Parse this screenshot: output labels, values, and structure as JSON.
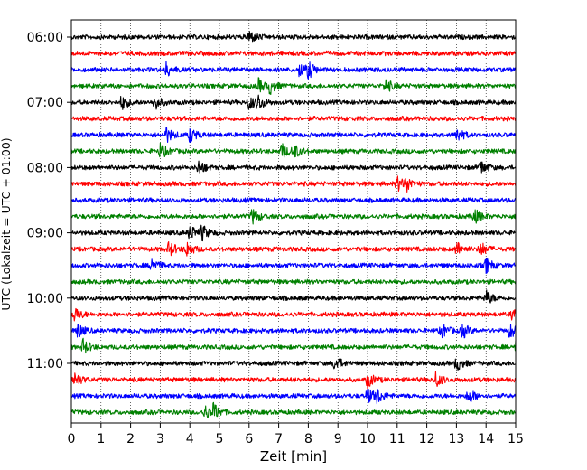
{
  "chart_data": {
    "type": "line",
    "title": "",
    "xlabel": "Zeit  [min]",
    "ylabel": "UTC (Lokalzeit = UTC + 01:00)",
    "xlim": [
      0,
      15
    ],
    "x_ticks": [
      "0",
      "1",
      "2",
      "3",
      "4",
      "5",
      "6",
      "7",
      "8",
      "9",
      "10",
      "11",
      "12",
      "13",
      "14",
      "15"
    ],
    "y_ticks": [
      "06:00",
      "07:00",
      "08:00",
      "09:00",
      "10:00",
      "11:00"
    ],
    "grid": true,
    "legend": "none",
    "trace_interval_min": 15,
    "trace_colors": [
      "#000000",
      "#ff0000",
      "#0000ff",
      "#008000"
    ],
    "series": [
      {
        "start": "06:00",
        "events": [
          6.0
        ]
      },
      {
        "start": "06:15",
        "events": []
      },
      {
        "start": "06:30",
        "events": [
          7.7,
          8.0,
          3.2
        ]
      },
      {
        "start": "06:45",
        "events": [
          6.7,
          10.6,
          6.3
        ]
      },
      {
        "start": "07:00",
        "events": [
          6.0,
          6.3,
          1.7,
          2.8
        ]
      },
      {
        "start": "07:15",
        "events": []
      },
      {
        "start": "07:30",
        "events": [
          3.2,
          13.0,
          4.0
        ]
      },
      {
        "start": "07:45",
        "events": [
          7.1,
          7.5,
          3.0
        ]
      },
      {
        "start": "08:00",
        "events": [
          4.3,
          13.8
        ]
      },
      {
        "start": "08:15",
        "events": [
          11.0,
          11.3
        ]
      },
      {
        "start": "08:30",
        "events": []
      },
      {
        "start": "08:45",
        "events": [
          6.1,
          13.6
        ]
      },
      {
        "start": "09:00",
        "events": [
          4.4,
          4.0
        ]
      },
      {
        "start": "09:15",
        "events": [
          3.3,
          3.9,
          13.0,
          13.8
        ]
      },
      {
        "start": "09:30",
        "events": [
          2.7,
          14.0
        ]
      },
      {
        "start": "09:45",
        "events": []
      },
      {
        "start": "10:00",
        "events": [
          14.0
        ]
      },
      {
        "start": "10:15",
        "events": [
          0.1,
          14.9
        ]
      },
      {
        "start": "10:30",
        "events": [
          0.2,
          12.5,
          13.2,
          14.8
        ]
      },
      {
        "start": "10:45",
        "events": [
          0.4,
          15.0
        ]
      },
      {
        "start": "11:00",
        "events": [
          8.9,
          13.0
        ]
      },
      {
        "start": "11:15",
        "events": [
          0.1,
          10.0,
          12.3
        ]
      },
      {
        "start": "11:30",
        "events": [
          10.0,
          10.3,
          13.4
        ]
      },
      {
        "start": "11:45",
        "events": [
          4.5,
          4.8
        ]
      }
    ]
  }
}
